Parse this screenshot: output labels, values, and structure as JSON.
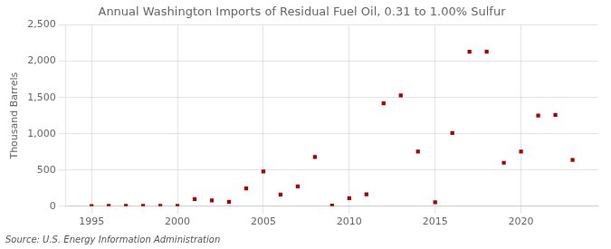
{
  "chart_data": {
    "type": "scatter",
    "title": "Annual Washington Imports of Residual Fuel Oil, 0.31 to 1.00% Sulfur",
    "ylabel": "Thousand Barrels",
    "source": "Source: U.S. Energy Information Administration",
    "x": [
      1995,
      1996,
      1997,
      1998,
      1999,
      2000,
      2001,
      2002,
      2003,
      2004,
      2005,
      2006,
      2007,
      2008,
      2009,
      2010,
      2011,
      2012,
      2013,
      2014,
      2015,
      2016,
      2017,
      2018,
      2019,
      2020,
      2021,
      2022,
      2023
    ],
    "values": [
      2,
      5,
      5,
      5,
      5,
      5,
      100,
      80,
      60,
      245,
      480,
      160,
      275,
      680,
      10,
      110,
      165,
      1420,
      1530,
      755,
      55,
      1010,
      2130,
      2130,
      600,
      755,
      1250,
      1260,
      640
    ],
    "color": "#aa0000",
    "marker": "square",
    "xlim": [
      1993.5,
      2024.5
    ],
    "xticks": [
      1995,
      2000,
      2005,
      2010,
      2015,
      2020
    ],
    "ylim": [
      0,
      2500
    ],
    "yticks": [
      0,
      500,
      {
        "value": 1000,
        "label": "1,000"
      },
      {
        "value": 1500,
        "label": "1,500"
      },
      {
        "value": 2000,
        "label": "2,000"
      },
      {
        "value": 2500,
        "label": "2,500"
      }
    ],
    "grid": true
  }
}
